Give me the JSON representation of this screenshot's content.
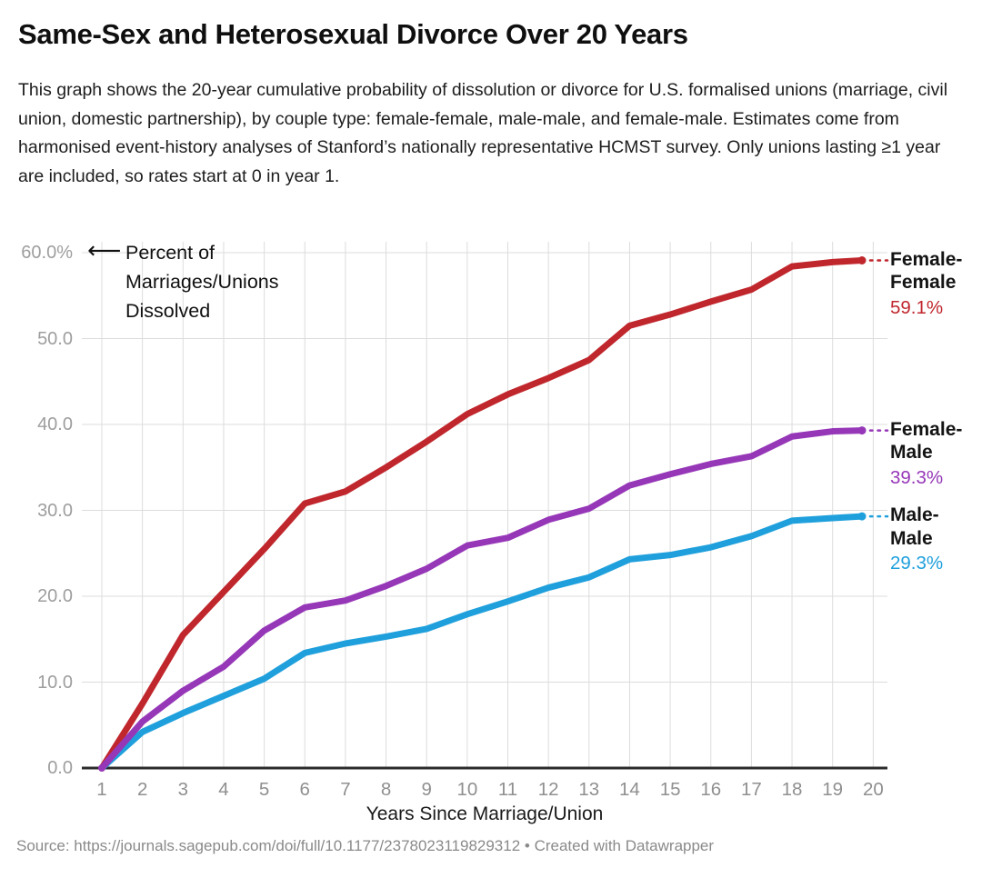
{
  "header": {
    "title": "Same-Sex and Heterosexual Divorce Over 20 Years",
    "description": "This graph shows the 20-year cumulative probability of dissolution or divorce for U.S. formalised unions (marriage, civil union, domestic partnership), by couple type: female-female, male-male, and female-male. Estimates come from harmonised event-history analyses of Stanford’s nationally representative HCMST survey. Only unions lasting ≥1 year are included, so rates start at 0 in year 1."
  },
  "annotation": {
    "arrow": "⟵",
    "text": "Percent of Marriages/Unions Dissolved"
  },
  "chart_data": {
    "type": "line",
    "title": "Same-Sex and Heterosexual Divorce Over 20 Years",
    "xlabel": "Years Since Marriage/Union",
    "ylabel": "Percent of Marriages/Unions Dissolved",
    "x": [
      1,
      2,
      3,
      4,
      5,
      6,
      7,
      8,
      9,
      10,
      11,
      12,
      13,
      14,
      15,
      16,
      17,
      18,
      19,
      20
    ],
    "x_tick_labels": [
      "1",
      "2",
      "3",
      "4",
      "5",
      "6",
      "7",
      "8",
      "9",
      "10",
      "11",
      "12",
      "13",
      "14",
      "15",
      "16",
      "17",
      "18",
      "19",
      "20"
    ],
    "ylim": [
      0,
      60
    ],
    "y_ticks": [
      {
        "label": "60.0%",
        "value": 60
      },
      {
        "label": "50.0",
        "value": 50
      },
      {
        "label": "40.0",
        "value": 40
      },
      {
        "label": "30.0",
        "value": 30
      },
      {
        "label": "20.0",
        "value": 20
      },
      {
        "label": "10.0",
        "value": 10
      },
      {
        "label": "0.0",
        "value": 0
      }
    ],
    "grid": true,
    "legend_position": "right",
    "series": [
      {
        "name": "Female-Female",
        "label_value": "59.1%",
        "color": "#c0272d",
        "values": [
          0,
          7.5,
          15.5,
          20.5,
          25.5,
          30.8,
          32.2,
          35.0,
          38.0,
          41.2,
          43.5,
          45.4,
          47.5,
          51.5,
          52.8,
          54.3,
          55.7,
          58.4,
          58.9,
          59.1
        ]
      },
      {
        "name": "Female-Male",
        "label_value": "39.3%",
        "color": "#9637b8",
        "values": [
          0,
          5.4,
          9.0,
          11.8,
          16.0,
          18.7,
          19.5,
          21.2,
          23.2,
          25.9,
          26.8,
          28.9,
          30.2,
          32.9,
          34.2,
          35.4,
          36.3,
          38.6,
          39.2,
          39.3
        ]
      },
      {
        "name": "Male-Male",
        "label_value": "29.3%",
        "color": "#1fa0dc",
        "values": [
          0,
          4.2,
          6.4,
          8.4,
          10.4,
          13.4,
          14.5,
          15.3,
          16.2,
          17.9,
          19.4,
          21.0,
          22.2,
          24.3,
          24.8,
          25.7,
          27.0,
          28.8,
          29.1,
          29.3
        ]
      }
    ]
  },
  "source": "Source: https://journals.sagepub.com/doi/full/10.1177/2378023119829312 • Created with Datawrapper"
}
